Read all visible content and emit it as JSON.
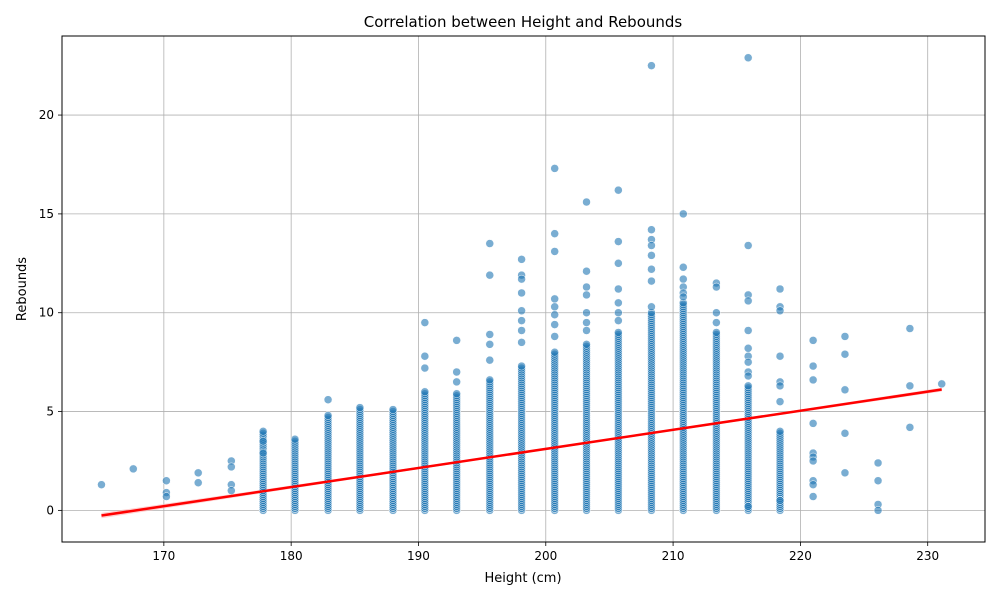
{
  "chart_data": {
    "type": "scatter",
    "title": "Correlation between Height and Rebounds",
    "xlabel": "Height (cm)",
    "ylabel": "Rebounds",
    "xlim": [
      162,
      234.5
    ],
    "ylim": [
      -1.6,
      24
    ],
    "xticks": [
      170,
      180,
      190,
      200,
      210,
      220,
      230
    ],
    "yticks": [
      0,
      5,
      10,
      15,
      20
    ],
    "grid": true,
    "point_color": "#1f77b4",
    "line_color": "#ff0000",
    "band_color": "#ffb3b3",
    "regression": {
      "intercept": -16.21,
      "slope": 0.0966,
      "x_range": [
        165.1,
        231.1
      ]
    },
    "columns": [
      {
        "x": 177.8,
        "max": 4.0
      },
      {
        "x": 180.3,
        "max": 3.6
      },
      {
        "x": 182.9,
        "max": 4.8
      },
      {
        "x": 185.4,
        "max": 5.2
      },
      {
        "x": 188.0,
        "max": 5.1
      },
      {
        "x": 190.5,
        "max": 6.0
      },
      {
        "x": 193.0,
        "max": 5.9
      },
      {
        "x": 195.6,
        "max": 6.6
      },
      {
        "x": 198.1,
        "max": 7.3
      },
      {
        "x": 200.7,
        "max": 8.0
      },
      {
        "x": 203.2,
        "max": 8.4
      },
      {
        "x": 205.7,
        "max": 9.0
      },
      {
        "x": 208.3,
        "max": 10.0
      },
      {
        "x": 210.8,
        "max": 10.5
      },
      {
        "x": 213.4,
        "max": 9.0
      },
      {
        "x": 215.9,
        "max": 6.3
      },
      {
        "x": 218.4,
        "max": 4.0
      }
    ],
    "points": [
      [
        165.1,
        1.3
      ],
      [
        167.6,
        2.1
      ],
      [
        170.2,
        1.5
      ],
      [
        170.2,
        0.9
      ],
      [
        170.2,
        0.7
      ],
      [
        172.7,
        1.9
      ],
      [
        172.7,
        1.4
      ],
      [
        175.3,
        2.5
      ],
      [
        175.3,
        2.2
      ],
      [
        175.3,
        1.3
      ],
      [
        175.3,
        1.0
      ],
      [
        177.8,
        3.5
      ],
      [
        177.8,
        2.9
      ],
      [
        182.9,
        5.6
      ],
      [
        190.5,
        9.5
      ],
      [
        190.5,
        7.8
      ],
      [
        190.5,
        7.2
      ],
      [
        193.0,
        8.6
      ],
      [
        193.0,
        7.0
      ],
      [
        193.0,
        6.5
      ],
      [
        195.6,
        13.5
      ],
      [
        195.6,
        11.9
      ],
      [
        195.6,
        8.9
      ],
      [
        195.6,
        8.4
      ],
      [
        195.6,
        7.6
      ],
      [
        198.1,
        12.7
      ],
      [
        198.1,
        11.9
      ],
      [
        198.1,
        11.7
      ],
      [
        198.1,
        11.0
      ],
      [
        198.1,
        10.1
      ],
      [
        198.1,
        9.6
      ],
      [
        198.1,
        9.1
      ],
      [
        198.1,
        8.5
      ],
      [
        200.7,
        17.3
      ],
      [
        200.7,
        14.0
      ],
      [
        200.7,
        13.1
      ],
      [
        200.7,
        10.7
      ],
      [
        200.7,
        10.3
      ],
      [
        200.7,
        9.9
      ],
      [
        200.7,
        9.4
      ],
      [
        200.7,
        8.8
      ],
      [
        203.2,
        15.6
      ],
      [
        203.2,
        12.1
      ],
      [
        203.2,
        11.3
      ],
      [
        203.2,
        10.9
      ],
      [
        203.2,
        10.0
      ],
      [
        203.2,
        9.5
      ],
      [
        203.2,
        9.1
      ],
      [
        205.7,
        16.2
      ],
      [
        205.7,
        13.6
      ],
      [
        205.7,
        12.5
      ],
      [
        205.7,
        11.2
      ],
      [
        205.7,
        10.5
      ],
      [
        205.7,
        10.0
      ],
      [
        205.7,
        9.6
      ],
      [
        208.3,
        22.5
      ],
      [
        208.3,
        14.2
      ],
      [
        208.3,
        13.7
      ],
      [
        208.3,
        13.4
      ],
      [
        208.3,
        12.9
      ],
      [
        208.3,
        12.2
      ],
      [
        208.3,
        11.6
      ],
      [
        208.3,
        10.3
      ],
      [
        210.8,
        15.0
      ],
      [
        210.8,
        12.3
      ],
      [
        210.8,
        11.7
      ],
      [
        210.8,
        11.3
      ],
      [
        210.8,
        11.0
      ],
      [
        210.8,
        10.8
      ],
      [
        213.4,
        11.5
      ],
      [
        213.4,
        11.3
      ],
      [
        213.4,
        10.0
      ],
      [
        213.4,
        9.5
      ],
      [
        215.9,
        22.9
      ],
      [
        215.9,
        13.4
      ],
      [
        215.9,
        10.9
      ],
      [
        215.9,
        10.6
      ],
      [
        215.9,
        9.1
      ],
      [
        215.9,
        8.2
      ],
      [
        215.9,
        7.8
      ],
      [
        215.9,
        7.5
      ],
      [
        215.9,
        7.0
      ],
      [
        215.9,
        6.8
      ],
      [
        215.9,
        0.2
      ],
      [
        218.4,
        11.2
      ],
      [
        218.4,
        10.3
      ],
      [
        218.4,
        10.1
      ],
      [
        218.4,
        7.8
      ],
      [
        218.4,
        6.5
      ],
      [
        218.4,
        6.3
      ],
      [
        218.4,
        5.5
      ],
      [
        218.4,
        0.5
      ],
      [
        221.0,
        8.6
      ],
      [
        221.0,
        7.3
      ],
      [
        221.0,
        6.6
      ],
      [
        221.0,
        4.4
      ],
      [
        221.0,
        2.9
      ],
      [
        221.0,
        2.7
      ],
      [
        221.0,
        2.5
      ],
      [
        221.0,
        1.5
      ],
      [
        221.0,
        1.3
      ],
      [
        221.0,
        0.7
      ],
      [
        223.5,
        8.8
      ],
      [
        223.5,
        7.9
      ],
      [
        223.5,
        6.1
      ],
      [
        223.5,
        3.9
      ],
      [
        223.5,
        1.9
      ],
      [
        226.1,
        2.4
      ],
      [
        226.1,
        1.5
      ],
      [
        226.1,
        0.3
      ],
      [
        226.1,
        0.0
      ],
      [
        228.6,
        9.2
      ],
      [
        228.6,
        6.3
      ],
      [
        228.6,
        4.2
      ],
      [
        231.1,
        6.4
      ]
    ]
  }
}
